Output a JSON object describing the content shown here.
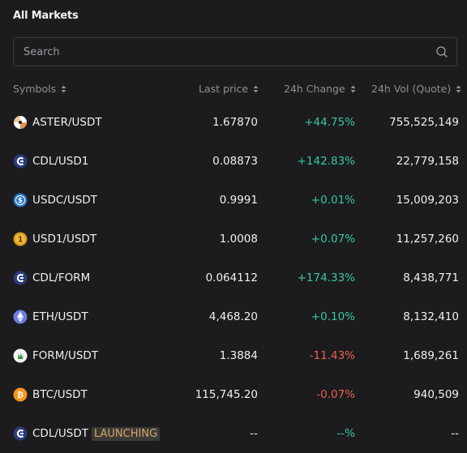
{
  "panel": {
    "title": "All Markets"
  },
  "search": {
    "placeholder": "Search",
    "value": ""
  },
  "columns": {
    "symbol": "Symbols",
    "price": "Last price",
    "change": "24h Change",
    "volume": "24h Vol (Quote)"
  },
  "rows": [
    {
      "symbol": "ASTER/USDT",
      "price": "1.67870",
      "change": "+44.75%",
      "volume": "755,525,149",
      "icon": "aster-icon",
      "direction": "up",
      "badge": ""
    },
    {
      "symbol": "CDL/USD1",
      "price": "0.08873",
      "change": "+142.83%",
      "volume": "22,779,158",
      "icon": "cdl-icon",
      "direction": "up",
      "badge": ""
    },
    {
      "symbol": "USDC/USDT",
      "price": "0.9991",
      "change": "+0.01%",
      "volume": "15,009,203",
      "icon": "usdc-icon",
      "direction": "up",
      "badge": ""
    },
    {
      "symbol": "USD1/USDT",
      "price": "1.0008",
      "change": "+0.07%",
      "volume": "11,257,260",
      "icon": "usd1-icon",
      "direction": "up",
      "badge": ""
    },
    {
      "symbol": "CDL/FORM",
      "price": "0.064112",
      "change": "+174.33%",
      "volume": "8,438,771",
      "icon": "cdl-icon",
      "direction": "up",
      "badge": ""
    },
    {
      "symbol": "ETH/USDT",
      "price": "4,468.20",
      "change": "+0.10%",
      "volume": "8,132,410",
      "icon": "eth-icon",
      "direction": "up",
      "badge": ""
    },
    {
      "symbol": "FORM/USDT",
      "price": "1.3884",
      "change": "-11.43%",
      "volume": "1,689,261",
      "icon": "form-icon",
      "direction": "down",
      "badge": ""
    },
    {
      "symbol": "BTC/USDT",
      "price": "115,745.20",
      "change": "-0.07%",
      "volume": "940,509",
      "icon": "btc-icon",
      "direction": "down",
      "badge": ""
    },
    {
      "symbol": "CDL/USDT",
      "price": "--",
      "change": "--%",
      "volume": "--",
      "icon": "cdl-icon",
      "direction": "up",
      "badge": "LAUNCHING"
    }
  ]
}
